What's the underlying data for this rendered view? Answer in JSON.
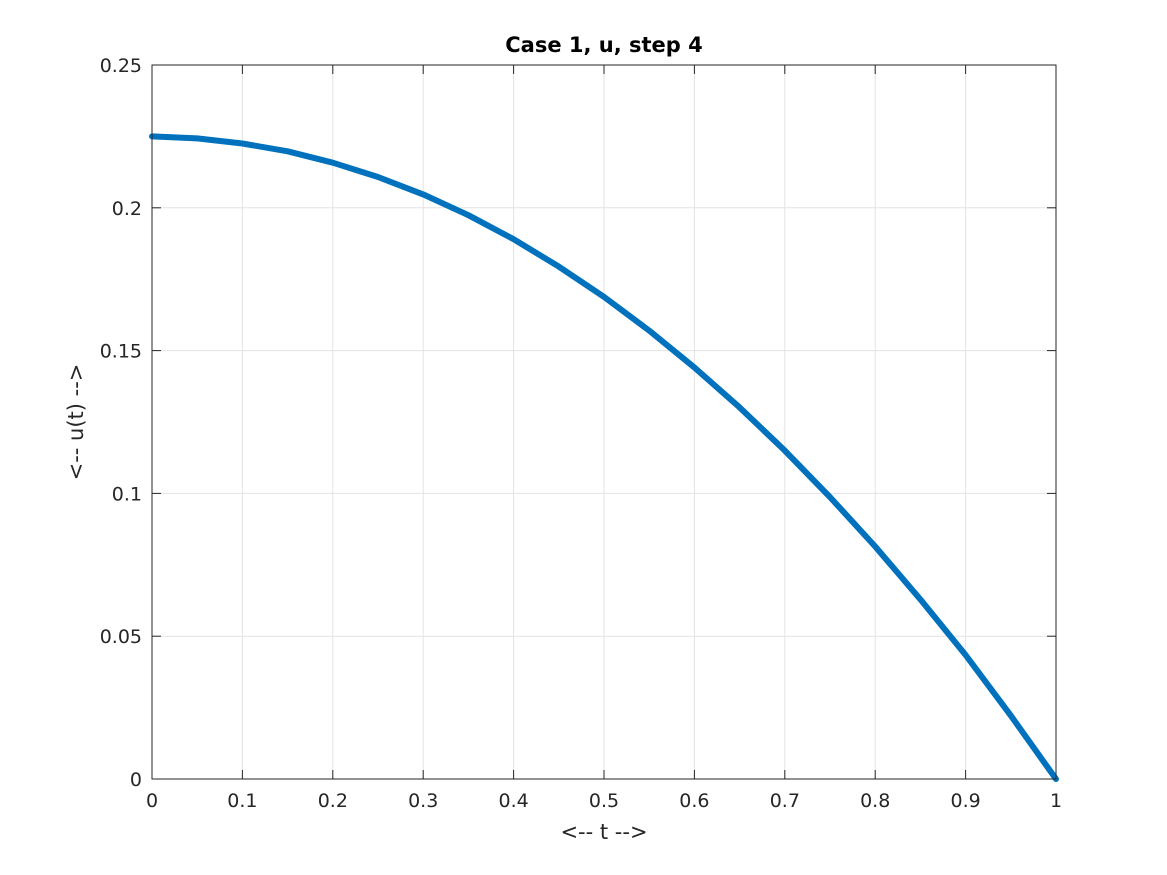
{
  "chart_data": {
    "type": "line",
    "title": "Case 1, u, step 4",
    "xlabel": "<-- t -->",
    "ylabel": "<-- u(t) -->",
    "xlim": [
      0,
      1
    ],
    "ylim": [
      0,
      0.25
    ],
    "xticks": [
      0,
      0.1,
      0.2,
      0.3,
      0.4,
      0.5,
      0.6,
      0.7,
      0.8,
      0.9,
      1
    ],
    "xtick_labels": [
      "0",
      "0.1",
      "0.2",
      "0.3",
      "0.4",
      "0.5",
      "0.6",
      "0.7",
      "0.8",
      "0.9",
      "1"
    ],
    "yticks": [
      0,
      0.05,
      0.1,
      0.15,
      0.2,
      0.25
    ],
    "ytick_labels": [
      "0",
      "0.05",
      "0.1",
      "0.15",
      "0.2",
      "0.25"
    ],
    "grid": true,
    "series": [
      {
        "color": "#0072bd",
        "x": [
          0,
          0.05,
          0.1,
          0.15,
          0.2,
          0.25,
          0.3,
          0.35,
          0.4,
          0.45,
          0.5,
          0.55,
          0.6,
          0.65,
          0.7,
          0.75,
          0.8,
          0.85,
          0.9,
          0.95,
          1
        ],
        "y": [
          0.225,
          0.2243,
          0.2225,
          0.2198,
          0.2158,
          0.2108,
          0.2047,
          0.1974,
          0.189,
          0.1794,
          0.1688,
          0.157,
          0.1441,
          0.1301,
          0.115,
          0.0987,
          0.0814,
          0.0629,
          0.0434,
          0.0222,
          0
        ]
      }
    ]
  }
}
